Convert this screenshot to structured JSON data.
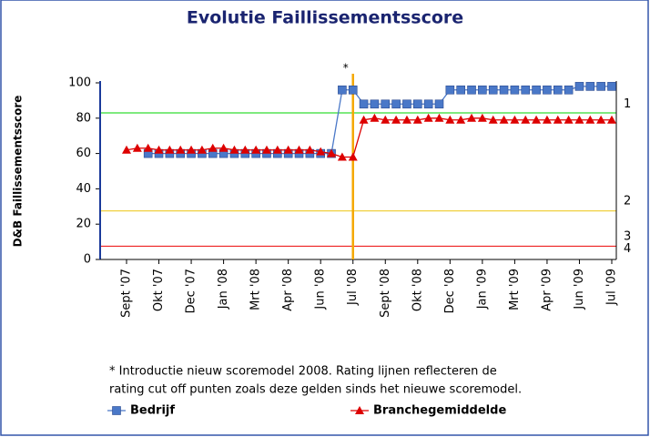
{
  "chart_data": {
    "type": "line",
    "title": "Evolutie Faillissementsscore",
    "y_label": "D&B Faillissementsscore",
    "categories": [
      "Sept '07",
      null,
      null,
      "Okt '07",
      null,
      null,
      "Dec '07",
      null,
      null,
      "Jan '08",
      null,
      null,
      "Mrt '08",
      null,
      null,
      "Apr '08",
      null,
      null,
      "Jun '08",
      null,
      null,
      "Jul '08",
      null,
      null,
      "Sept '08",
      null,
      null,
      "Okt '08",
      null,
      null,
      "Dec '08",
      null,
      null,
      "Jan '09",
      null,
      null,
      "Mrt '09",
      null,
      null,
      "Apr '09",
      null,
      null,
      "Jun '09",
      null,
      null,
      "Jul '09"
    ],
    "series": [
      {
        "name": "Bedrijf",
        "color": "#4a78c8",
        "marker": "square",
        "values": [
          null,
          null,
          60,
          60,
          60,
          60,
          60,
          60,
          60,
          60,
          60,
          60,
          60,
          60,
          60,
          60,
          60,
          60,
          60,
          60,
          96,
          96,
          88,
          88,
          88,
          88,
          88,
          88,
          88,
          88,
          96,
          96,
          96,
          96,
          96,
          96,
          96,
          96,
          96,
          96,
          96,
          96,
          98,
          98,
          98,
          98
        ]
      },
      {
        "name": "Branchegemiddelde",
        "color": "#dd0000",
        "marker": "triangle",
        "values": [
          62,
          63,
          63,
          62,
          62,
          62,
          62,
          62,
          63,
          63,
          62,
          62,
          62,
          62,
          62,
          62,
          62,
          62,
          61,
          60,
          58,
          58,
          79,
          80,
          79,
          79,
          79,
          79,
          80,
          80,
          79,
          79,
          80,
          80,
          79,
          79,
          79,
          79,
          79,
          79,
          79,
          79,
          79,
          79,
          79,
          79
        ]
      }
    ],
    "ylim": [
      0,
      100
    ],
    "yticks": [
      0,
      20,
      40,
      60,
      80,
      100
    ],
    "rating_lines": [
      {
        "value": 83,
        "color": "#33dd33"
      },
      {
        "value": 27.5,
        "color": "#f0d040"
      },
      {
        "value": 7.5,
        "color": "#ee2222"
      }
    ],
    "rating_zones": [
      {
        "label": "1",
        "value": 88
      },
      {
        "label": "2",
        "value": 33
      },
      {
        "label": "3",
        "value": 13
      },
      {
        "label": "4",
        "value": 6
      }
    ],
    "marker_line": {
      "index": 21,
      "label": "*",
      "color": "#f5a800"
    },
    "footnote": [
      "* Introductie nieuw scoremodel 2008. Rating lijnen reflecteren de",
      "rating cut off punten zoals deze gelden sinds het nieuwe scoremodel."
    ]
  }
}
